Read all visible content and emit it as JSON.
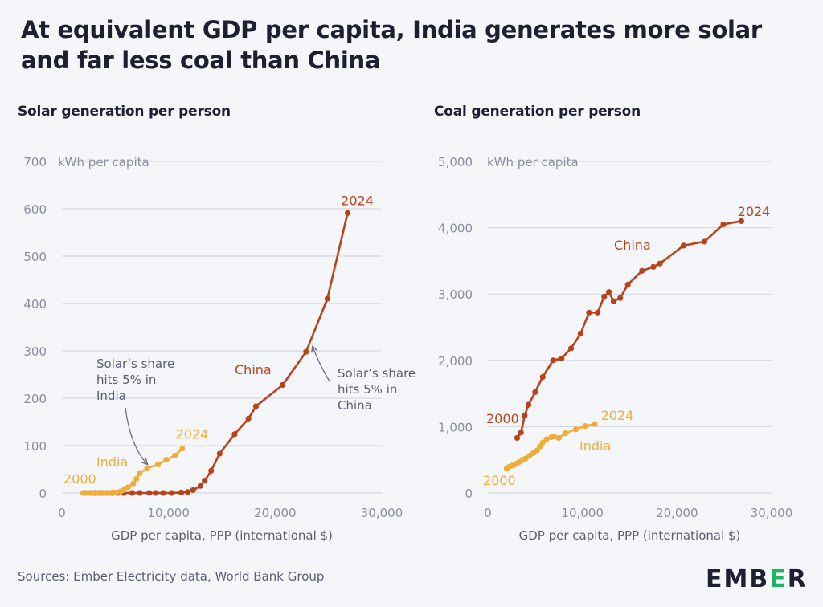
{
  "title": "At equivalent GDP per capita, India generates more solar and far less coal than China",
  "source": "Sources: Ember Electricity data, World Bank Group",
  "logo": {
    "text_before": "EMB",
    "text_accent": "E",
    "text_after": "R"
  },
  "colors": {
    "china": "#b8421a",
    "india": "#efad3a",
    "axis": "#8a8f9e",
    "grid": "#cfd3dc",
    "text": "#1c2030"
  },
  "chart_data": [
    {
      "type": "line",
      "title": "Solar generation per person",
      "ylabel": "kWh per capita",
      "xlabel": "GDP per capita, PPP (international $)",
      "xlim": [
        0,
        30000
      ],
      "ylim": [
        0,
        700
      ],
      "xticks": [
        0,
        10000,
        20000,
        30000
      ],
      "xtick_labels": [
        "0",
        "10,000",
        "20,000",
        "30,000"
      ],
      "yticks": [
        0,
        100,
        200,
        300,
        400,
        500,
        600,
        700
      ],
      "ytick_labels": [
        "0",
        "100",
        "200",
        "300",
        "400",
        "500",
        "600",
        "700"
      ],
      "grid": true,
      "series": [
        {
          "name": "China",
          "color": "#b8421a",
          "x": [
            3100,
            3500,
            3800,
            4200,
            4700,
            5200,
            5800,
            6600,
            7300,
            8200,
            8800,
            9500,
            10300,
            11200,
            11800,
            12300,
            13000,
            13400,
            14000,
            14800,
            16200,
            17500,
            18200,
            20700,
            22900,
            24900,
            26800
          ],
          "y": [
            0,
            0,
            0,
            0,
            0,
            0,
            0,
            0,
            0,
            0,
            0,
            0,
            0,
            1,
            2,
            6,
            15,
            26,
            47,
            83,
            124,
            157,
            183,
            228,
            298,
            410,
            591
          ]
        },
        {
          "name": "India",
          "color": "#efad3a",
          "x": [
            2000,
            2200,
            2400,
            2600,
            2800,
            3000,
            3300,
            3600,
            3900,
            4200,
            4500,
            4800,
            5100,
            5500,
            5800,
            6200,
            6700,
            7000,
            7300,
            8000,
            9000,
            9800,
            10600,
            11300
          ],
          "y": [
            0,
            0,
            0,
            0,
            0,
            0,
            0,
            0,
            0,
            0,
            0,
            1,
            1,
            3,
            6,
            12,
            20,
            30,
            42,
            52,
            60,
            70,
            79,
            94
          ]
        }
      ],
      "labels": {
        "china": "China",
        "india": "India",
        "china_end": "2024",
        "india_start": "2000",
        "india_end": "2024"
      },
      "annotations": [
        {
          "text": [
            "Solar’s share",
            "hits 5% in",
            "India"
          ]
        },
        {
          "text": [
            "Solar’s share",
            "hits 5% in",
            "China"
          ]
        }
      ]
    },
    {
      "type": "line",
      "title": "Coal generation per person",
      "ylabel": "kWh per capita",
      "xlabel": "GDP per capita, PPP (international $)",
      "xlim": [
        0,
        30000
      ],
      "ylim": [
        0,
        5000
      ],
      "xticks": [
        0,
        10000,
        20000,
        30000
      ],
      "xtick_labels": [
        "0",
        "10,000",
        "20,000",
        "30,000"
      ],
      "yticks": [
        0,
        1000,
        2000,
        3000,
        4000,
        5000
      ],
      "ytick_labels": [
        "0",
        "1,000",
        "2,000",
        "3,000",
        "4,000",
        "5,000"
      ],
      "grid": true,
      "series": [
        {
          "name": "China",
          "color": "#b8421a",
          "x": [
            3100,
            3500,
            3900,
            4300,
            5000,
            5800,
            6900,
            7800,
            8800,
            9800,
            10700,
            11600,
            12300,
            12800,
            13300,
            14000,
            14800,
            16300,
            17500,
            18200,
            20700,
            22900,
            24900,
            26800
          ],
          "y": [
            830,
            910,
            1170,
            1330,
            1520,
            1750,
            2000,
            2030,
            2180,
            2400,
            2720,
            2720,
            2960,
            3030,
            2890,
            2940,
            3140,
            3350,
            3410,
            3460,
            3730,
            3790,
            4050,
            4100
          ]
        },
        {
          "name": "India",
          "color": "#efad3a",
          "x": [
            2000,
            2200,
            2500,
            2800,
            3100,
            3400,
            3700,
            4000,
            4400,
            4800,
            5200,
            5500,
            5800,
            6200,
            6700,
            7000,
            7500,
            8200,
            9300,
            10300,
            11300
          ],
          "y": [
            370,
            390,
            410,
            425,
            450,
            470,
            500,
            520,
            560,
            600,
            640,
            700,
            760,
            810,
            840,
            850,
            830,
            900,
            960,
            1010,
            1040
          ]
        }
      ],
      "labels": {
        "china": "China",
        "india": "India",
        "china_start": "2000",
        "china_end": "2024",
        "india_start": "2000",
        "india_end": "2024"
      }
    }
  ]
}
